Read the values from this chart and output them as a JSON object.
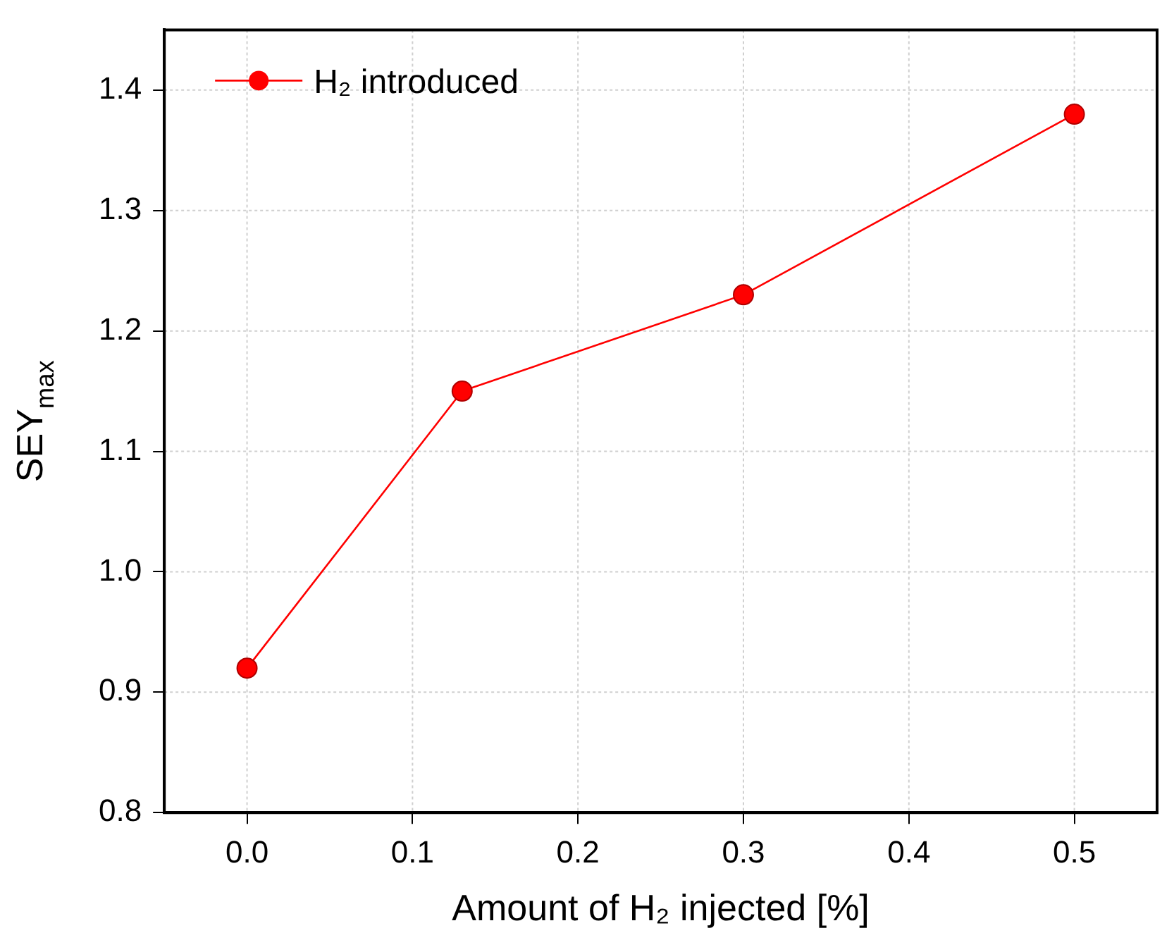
{
  "chart_data": {
    "type": "line",
    "xlabel": "Amount of H₂ injected [%]",
    "ylabel": "SEY$_{max}$",
    "x": [
      0,
      0.13,
      0.3,
      0.5
    ],
    "series": [
      {
        "name": "H₂ introduced",
        "color": "#ff0000",
        "values": [
          0.92,
          1.15,
          1.23,
          1.38
        ]
      }
    ],
    "xlim": [
      -0.05,
      0.55
    ],
    "xticks": [
      {
        "value": 0,
        "label": "0.0"
      },
      0.1,
      0.2,
      0.3,
      0.4,
      0.5
    ],
    "ylim": [
      0.8,
      1.45
    ],
    "yticks": [
      0.8,
      0.9,
      {
        "value": 1,
        "label": "1.0"
      },
      1.1,
      1.2,
      1.3,
      1.4
    ],
    "grid": true,
    "legend": "top left",
    "marker": "circle",
    "line_style": "solid"
  }
}
